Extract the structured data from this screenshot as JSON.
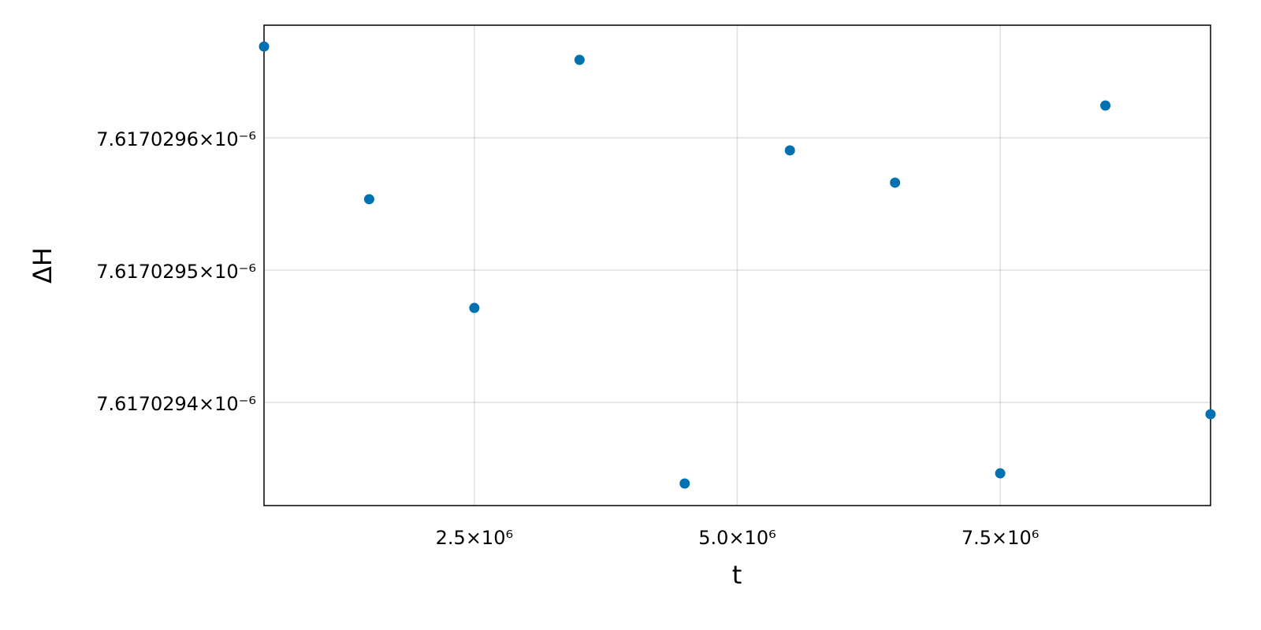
{
  "chart_data": {
    "type": "scatter",
    "x_label": "t",
    "y_label": "ΔH",
    "series": [
      {
        "color": "#0072b2",
        "x": [
          500000,
          1500000,
          2500000,
          3500000,
          4500000,
          5500000,
          6500000,
          7500000,
          8500000,
          9500000
        ],
        "values": [
          7.617029669e-06,
          7.6170295536e-06,
          7.6170294714e-06,
          7.6170296589e-06,
          7.6170293387e-06,
          7.6170295905e-06,
          7.6170295661e-06,
          7.6170293464e-06,
          7.6170296244e-06,
          7.6170293911e-06
        ]
      }
    ],
    "xlim": [
      500000,
      9500000
    ],
    "ylim": [
      7.61702932202e-06,
      7.61702968512e-06
    ],
    "xticks": [
      {
        "value": 2500000,
        "label": "2.5×10⁶"
      },
      {
        "value": 5000000,
        "label": "5.0×10⁶"
      },
      {
        "value": 7500000,
        "label": "7.5×10⁶"
      }
    ],
    "yticks": [
      {
        "value": 7.6170294e-06,
        "label": "7.6170294×10⁻⁶"
      },
      {
        "value": 7.6170295e-06,
        "label": "7.6170295×10⁻⁶"
      },
      {
        "value": 7.6170296e-06,
        "label": "7.6170296×10⁻⁶"
      }
    ],
    "grid": true
  }
}
